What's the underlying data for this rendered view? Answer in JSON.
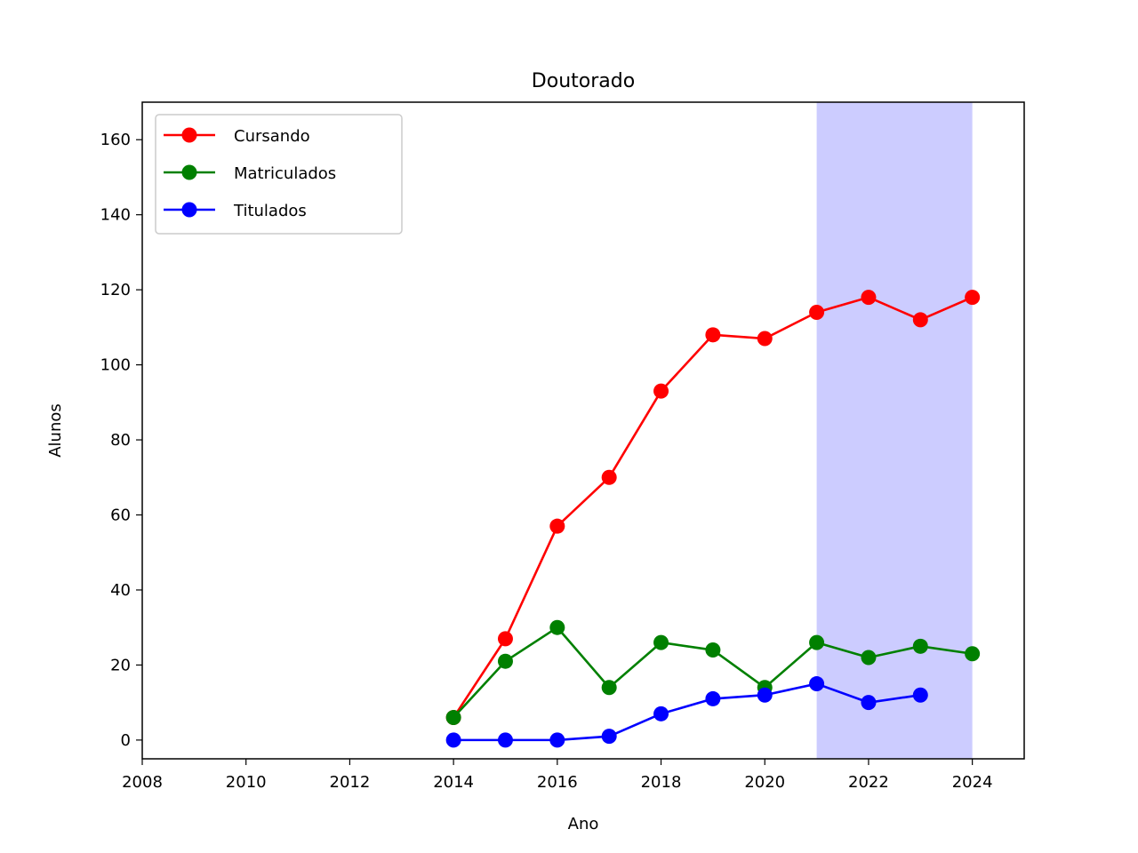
{
  "chart_data": {
    "type": "line",
    "title": "Doutorado",
    "xlabel": "Ano",
    "ylabel": "Alunos",
    "xlim": [
      2008,
      2025
    ],
    "ylim": [
      -5,
      170
    ],
    "xticks": [
      2008,
      2010,
      2012,
      2014,
      2016,
      2018,
      2020,
      2022,
      2024
    ],
    "yticks": [
      0,
      20,
      40,
      60,
      80,
      100,
      120,
      140,
      160
    ],
    "grid": false,
    "legend_position": "top-left",
    "shaded_region": {
      "x_start": 2021,
      "x_end": 2024,
      "color": "#ccccff"
    },
    "series": [
      {
        "name": "Cursando",
        "color": "#ff0000",
        "x": [
          2014,
          2015,
          2016,
          2017,
          2018,
          2019,
          2020,
          2021,
          2022,
          2023,
          2024
        ],
        "y": [
          6,
          27,
          57,
          70,
          93,
          108,
          107,
          114,
          118,
          112,
          118
        ]
      },
      {
        "name": "Matriculados",
        "color": "#008000",
        "x": [
          2014,
          2015,
          2016,
          2017,
          2018,
          2019,
          2020,
          2021,
          2022,
          2023,
          2024
        ],
        "y": [
          6,
          21,
          30,
          14,
          26,
          24,
          14,
          26,
          22,
          25,
          23
        ]
      },
      {
        "name": "Titulados",
        "color": "#0000ff",
        "x": [
          2014,
          2015,
          2016,
          2017,
          2018,
          2019,
          2020,
          2021,
          2022,
          2023
        ],
        "y": [
          0,
          0,
          0,
          1,
          7,
          11,
          12,
          15,
          10,
          12
        ]
      }
    ]
  }
}
